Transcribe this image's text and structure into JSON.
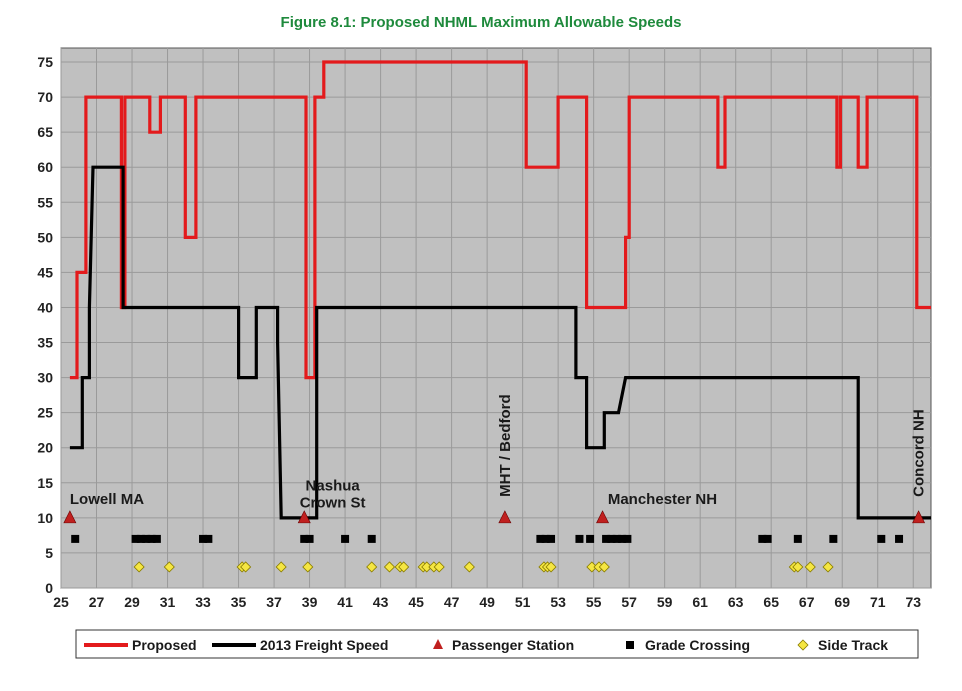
{
  "chart_data": {
    "type": "line",
    "title": "Figure 8.1: Proposed NHML Maximum Allowable Speeds",
    "xlabel": "",
    "ylabel": "",
    "xlim": [
      25,
      74
    ],
    "ylim": [
      0,
      77
    ],
    "x_ticks": [
      25,
      27,
      29,
      31,
      33,
      35,
      37,
      39,
      41,
      43,
      45,
      47,
      49,
      51,
      53,
      55,
      57,
      59,
      61,
      63,
      65,
      67,
      69,
      71,
      73
    ],
    "y_ticks": [
      0,
      5,
      10,
      15,
      20,
      25,
      30,
      35,
      40,
      45,
      50,
      55,
      60,
      65,
      70,
      75
    ],
    "grid": true,
    "legend_position": "bottom",
    "colors": {
      "proposed": "#e31a1c",
      "freight": "#000000",
      "station": "#c0201f",
      "crossing": "#000000",
      "side_track": "#f5e642",
      "plot_bg": "#c0c0c0"
    },
    "series": [
      {
        "name": "Proposed",
        "x": [
          25.5,
          25.9,
          25.9,
          26.4,
          26.4,
          28.4,
          28.4,
          28.6,
          28.6,
          29.0,
          29.0,
          29.2,
          29.2,
          30.0,
          30.0,
          30.6,
          30.6,
          31.0,
          31.0,
          32.0,
          32.0,
          32.6,
          32.6,
          38.8,
          38.8,
          39.3,
          39.3,
          39.8,
          39.8,
          51.2,
          51.2,
          53.0,
          53.0,
          54.6,
          54.6,
          56.8,
          56.8,
          57.0,
          57.0,
          62.0,
          62.0,
          62.4,
          62.4,
          68.7,
          68.7,
          68.9,
          68.9,
          69.9,
          69.9,
          70.4,
          70.4,
          73.2,
          73.2,
          74.0
        ],
        "values": [
          30,
          30,
          45,
          45,
          70,
          70,
          40,
          40,
          70,
          70,
          70,
          70,
          70,
          70,
          65,
          65,
          70,
          70,
          70,
          70,
          50,
          50,
          70,
          70,
          30,
          30,
          70,
          70,
          75,
          75,
          60,
          60,
          70,
          70,
          40,
          40,
          50,
          50,
          70,
          70,
          60,
          60,
          70,
          70,
          60,
          60,
          70,
          70,
          60,
          60,
          70,
          70,
          40,
          40
        ]
      },
      {
        "name": "2013 Freight Speed",
        "x": [
          25.5,
          26.2,
          26.2,
          26.6,
          26.6,
          26.8,
          26.8,
          28.5,
          28.5,
          35.0,
          35.0,
          36.0,
          36.0,
          37.2,
          37.2,
          37.4,
          37.4,
          39.4,
          39.4,
          54.0,
          54.0,
          54.6,
          54.6,
          55.6,
          55.6,
          56.4,
          56.4,
          56.8,
          56.8,
          69.9,
          69.9,
          74.0
        ],
        "values": [
          20,
          20,
          30,
          30,
          40,
          60,
          60,
          60,
          40,
          40,
          30,
          30,
          40,
          40,
          35,
          10,
          10,
          10,
          40,
          40,
          30,
          30,
          20,
          20,
          25,
          25,
          25,
          30,
          30,
          30,
          10,
          10
        ]
      }
    ],
    "passenger_stations": {
      "name": "Passenger Station",
      "x": [
        25.5,
        38.7,
        50.0,
        55.5,
        73.3
      ],
      "y": [
        10,
        10,
        10,
        10,
        10
      ]
    },
    "grade_crossings": {
      "name": "Grade Crossing",
      "x": [
        25.8,
        29.2,
        29.5,
        29.8,
        30.1,
        30.4,
        33.0,
        33.3,
        38.7,
        39.0,
        41.0,
        42.5,
        52.0,
        52.3,
        52.6,
        54.2,
        54.8,
        55.7,
        56.0,
        56.3,
        56.6,
        56.9,
        64.5,
        64.8,
        66.5,
        68.5,
        71.2,
        72.2
      ],
      "y": [
        7,
        7,
        7,
        7,
        7,
        7,
        7,
        7,
        7,
        7,
        7,
        7,
        7,
        7,
        7,
        7,
        7,
        7,
        7,
        7,
        7,
        7,
        7,
        7,
        7,
        7,
        7,
        7
      ]
    },
    "side_tracks": {
      "name": "Side Track",
      "x": [
        29.4,
        31.1,
        35.2,
        35.4,
        37.4,
        38.9,
        42.5,
        43.5,
        44.1,
        44.3,
        45.4,
        45.6,
        46.0,
        46.3,
        48.0,
        52.2,
        52.4,
        52.6,
        54.9,
        55.3,
        55.6,
        66.3,
        66.5,
        67.2,
        68.2
      ],
      "y": [
        3,
        3,
        3,
        3,
        3,
        3,
        3,
        3,
        3,
        3,
        3,
        3,
        3,
        3,
        3,
        3,
        3,
        3,
        3,
        3,
        3,
        3,
        3,
        3,
        3
      ]
    },
    "annotations": [
      {
        "text": "Lowell MA",
        "x": 25.5,
        "y": 12,
        "orientation": "horizontal"
      },
      {
        "text": "Nashua",
        "x": 40.3,
        "y": 13.9,
        "orientation": "horizontal"
      },
      {
        "text": "Crown St",
        "x": 40.3,
        "y": 11.5,
        "orientation": "horizontal"
      },
      {
        "text": "MHT / Bedford",
        "x": 50.0,
        "y": 13,
        "orientation": "vertical"
      },
      {
        "text": "Manchester NH",
        "x": 55.8,
        "y": 12,
        "orientation": "horizontal"
      },
      {
        "text": "Concord NH",
        "x": 73.3,
        "y": 13,
        "orientation": "vertical"
      }
    ],
    "legend": [
      "Proposed",
      "2013 Freight Speed",
      "Passenger Station",
      "Grade Crossing",
      "Side Track"
    ]
  }
}
